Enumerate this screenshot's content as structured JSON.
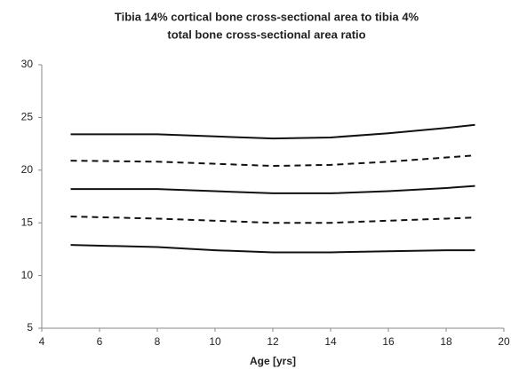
{
  "chart_data": {
    "type": "line",
    "title": [
      "Tibia 14% cortical bone cross-sectional area to tibia 4%",
      "total bone cross-sectional area ratio"
    ],
    "x_label": "Age [yrs]",
    "x": [
      5,
      8,
      10,
      12,
      14,
      16,
      18,
      19
    ],
    "series": [
      {
        "color": "#111111",
        "dashed": false,
        "values": [
          23.4,
          23.4,
          23.2,
          23.0,
          23.1,
          23.5,
          24.0,
          24.3
        ]
      },
      {
        "color": "#111111",
        "dashed": true,
        "values": [
          20.9,
          20.8,
          20.6,
          20.4,
          20.5,
          20.8,
          21.2,
          21.4
        ]
      },
      {
        "color": "#111111",
        "dashed": false,
        "values": [
          18.2,
          18.2,
          18.0,
          17.8,
          17.8,
          18.0,
          18.3,
          18.5
        ]
      },
      {
        "color": "#111111",
        "dashed": true,
        "values": [
          15.6,
          15.4,
          15.2,
          15.0,
          15.0,
          15.2,
          15.4,
          15.5
        ]
      },
      {
        "color": "#111111",
        "dashed": false,
        "values": [
          12.9,
          12.7,
          12.4,
          12.2,
          12.2,
          12.3,
          12.4,
          12.4
        ]
      }
    ],
    "xlim": [
      4,
      20
    ],
    "xticks": [
      4,
      6,
      8,
      10,
      12,
      14,
      16,
      18,
      20
    ],
    "ylim": [
      5,
      30
    ],
    "yticks": [
      5,
      10,
      15,
      20,
      25,
      30
    ],
    "grid": false
  }
}
